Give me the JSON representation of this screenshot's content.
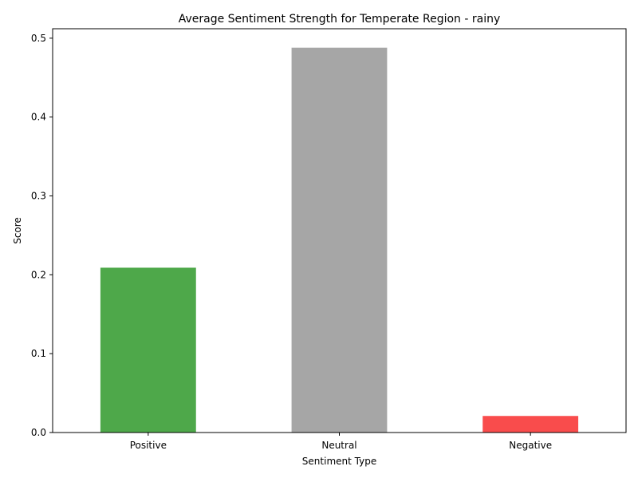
{
  "chart_data": {
    "type": "bar",
    "title": "Average Sentiment Strength for Temperate Region - rainy",
    "xlabel": "Sentiment Type",
    "ylabel": "Score",
    "categories": [
      "Positive",
      "Neutral",
      "Negative"
    ],
    "values": [
      0.209,
      0.488,
      0.021
    ],
    "colors": [
      "#4ea84a",
      "#a6a6a6",
      "#f94c4c"
    ],
    "ylim": [
      0,
      0.512
    ],
    "yticks": [
      0.0,
      0.1,
      0.2,
      0.3,
      0.4,
      0.5
    ],
    "ytick_labels": [
      "0.0",
      "0.1",
      "0.2",
      "0.3",
      "0.4",
      "0.5"
    ],
    "grid": false,
    "legend": "none"
  }
}
